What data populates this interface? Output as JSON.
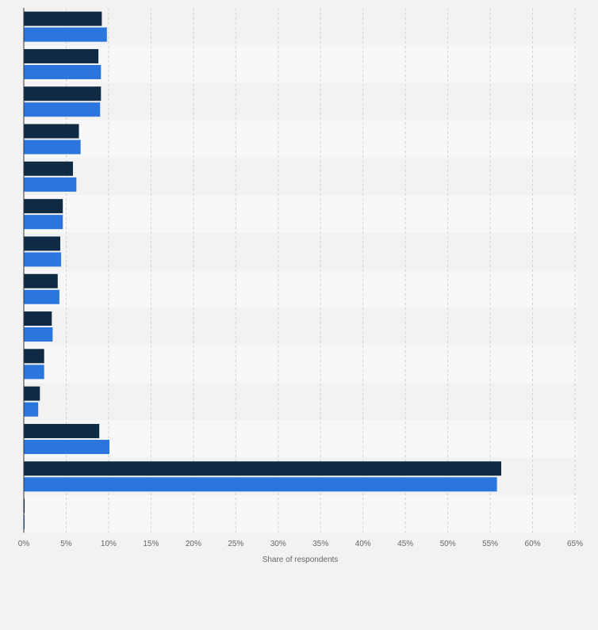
{
  "chart_data": {
    "type": "bar",
    "orientation": "horizontal",
    "categories": [
      "",
      "",
      "",
      "",
      "",
      "",
      "",
      "",
      "",
      "",
      "",
      "",
      "",
      ""
    ],
    "series": [
      {
        "color": "#0f2a44",
        "values": [
          9.2,
          8.8,
          9.1,
          6.5,
          5.8,
          4.6,
          4.3,
          4.0,
          3.3,
          2.4,
          1.9,
          8.9,
          56.3,
          0.1
        ]
      },
      {
        "color": "#2a76dd",
        "values": [
          9.8,
          9.1,
          9.0,
          6.7,
          6.2,
          4.6,
          4.4,
          4.2,
          3.4,
          2.4,
          1.7,
          10.1,
          55.8,
          0.1
        ]
      }
    ],
    "xlim": [
      0,
      65
    ],
    "xticks": [
      "0%",
      "5%",
      "10%",
      "15%",
      "20%",
      "25%",
      "30%",
      "35%",
      "40%",
      "45%",
      "50%",
      "55%",
      "60%",
      "65%"
    ],
    "xlabel": "Share of respondents",
    "grid": true,
    "background_bands": [
      "#f2f2f2",
      "#f7f7f7"
    ]
  }
}
